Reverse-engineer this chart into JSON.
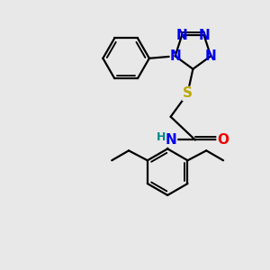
{
  "background_color": "#e8e8e8",
  "fig_size": [
    3.0,
    3.0
  ],
  "dpi": 100,
  "atom_colors": {
    "C": "#000000",
    "N": "#0000ee",
    "O": "#ee0000",
    "S": "#bbaa00",
    "H": "#008888"
  },
  "bond_color": "#000000",
  "bond_width": 1.6,
  "font_size_atoms": 11,
  "font_size_h": 9
}
